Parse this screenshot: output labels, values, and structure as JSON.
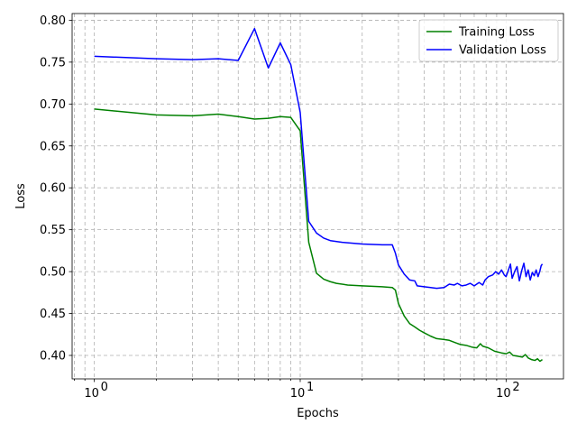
{
  "chart_data": {
    "type": "line",
    "xlabel": "Epochs",
    "ylabel": "Loss",
    "xscale": "log",
    "xlim": [
      0.78,
      190
    ],
    "ylim": [
      0.372,
      0.808
    ],
    "x_ticks": [
      1,
      10,
      100
    ],
    "x_tick_labels": [
      "10",
      "10",
      "10"
    ],
    "x_tick_exponents": [
      "0",
      "1",
      "2"
    ],
    "y_ticks": [
      0.4,
      0.45,
      0.5,
      0.55,
      0.6,
      0.65,
      0.7,
      0.75,
      0.8
    ],
    "y_tick_labels": [
      "0.40",
      "0.45",
      "0.50",
      "0.55",
      "0.60",
      "0.65",
      "0.70",
      "0.75",
      "0.80"
    ],
    "grid": true,
    "grid_style": "dashed",
    "legend_position": "top-right",
    "series": [
      {
        "name": "Training Loss",
        "color": "#008000",
        "points": [
          [
            1,
            0.694
          ],
          [
            2,
            0.687
          ],
          [
            3,
            0.686
          ],
          [
            4,
            0.688
          ],
          [
            5,
            0.685
          ],
          [
            6,
            0.682
          ],
          [
            7,
            0.683
          ],
          [
            8,
            0.685
          ],
          [
            9,
            0.684
          ],
          [
            10,
            0.668
          ],
          [
            11,
            0.535
          ],
          [
            12,
            0.498
          ],
          [
            13,
            0.491
          ],
          [
            14,
            0.488
          ],
          [
            15,
            0.486
          ],
          [
            17,
            0.484
          ],
          [
            20,
            0.483
          ],
          [
            25,
            0.482
          ],
          [
            28,
            0.481
          ],
          [
            29,
            0.478
          ],
          [
            30,
            0.462
          ],
          [
            32,
            0.447
          ],
          [
            34,
            0.438
          ],
          [
            36,
            0.434
          ],
          [
            38,
            0.43
          ],
          [
            40,
            0.427
          ],
          [
            43,
            0.423
          ],
          [
            46,
            0.42
          ],
          [
            50,
            0.419
          ],
          [
            53,
            0.418
          ],
          [
            57,
            0.415
          ],
          [
            60,
            0.413
          ],
          [
            64,
            0.412
          ],
          [
            68,
            0.41
          ],
          [
            72,
            0.409
          ],
          [
            75,
            0.414
          ],
          [
            77,
            0.411
          ],
          [
            82,
            0.409
          ],
          [
            88,
            0.405
          ],
          [
            95,
            0.403
          ],
          [
            100,
            0.402
          ],
          [
            104,
            0.404
          ],
          [
            108,
            0.4
          ],
          [
            114,
            0.399
          ],
          [
            120,
            0.398
          ],
          [
            124,
            0.401
          ],
          [
            128,
            0.397
          ],
          [
            133,
            0.395
          ],
          [
            138,
            0.394
          ],
          [
            142,
            0.396
          ],
          [
            146,
            0.393
          ],
          [
            150,
            0.395
          ]
        ]
      },
      {
        "name": "Validation Loss",
        "color": "#0000ff",
        "points": [
          [
            1,
            0.757
          ],
          [
            2,
            0.754
          ],
          [
            3,
            0.753
          ],
          [
            4,
            0.754
          ],
          [
            5,
            0.752
          ],
          [
            6,
            0.79
          ],
          [
            7,
            0.743
          ],
          [
            8,
            0.773
          ],
          [
            9,
            0.747
          ],
          [
            10,
            0.69
          ],
          [
            11,
            0.56
          ],
          [
            12,
            0.546
          ],
          [
            13,
            0.54
          ],
          [
            14,
            0.537
          ],
          [
            16,
            0.535
          ],
          [
            20,
            0.533
          ],
          [
            25,
            0.532
          ],
          [
            28,
            0.532
          ],
          [
            29,
            0.522
          ],
          [
            30,
            0.508
          ],
          [
            32,
            0.497
          ],
          [
            34,
            0.49
          ],
          [
            36,
            0.489
          ],
          [
            37,
            0.483
          ],
          [
            40,
            0.482
          ],
          [
            43,
            0.481
          ],
          [
            46,
            0.48
          ],
          [
            50,
            0.481
          ],
          [
            53,
            0.485
          ],
          [
            56,
            0.484
          ],
          [
            58,
            0.486
          ],
          [
            61,
            0.483
          ],
          [
            64,
            0.484
          ],
          [
            67,
            0.486
          ],
          [
            70,
            0.483
          ],
          [
            74,
            0.487
          ],
          [
            77,
            0.484
          ],
          [
            79,
            0.49
          ],
          [
            82,
            0.494
          ],
          [
            86,
            0.496
          ],
          [
            89,
            0.5
          ],
          [
            92,
            0.497
          ],
          [
            95,
            0.502
          ],
          [
            98,
            0.496
          ],
          [
            100,
            0.494
          ],
          [
            102,
            0.5
          ],
          [
            105,
            0.509
          ],
          [
            107,
            0.492
          ],
          [
            110,
            0.5
          ],
          [
            113,
            0.506
          ],
          [
            116,
            0.489
          ],
          [
            119,
            0.501
          ],
          [
            122,
            0.51
          ],
          [
            125,
            0.494
          ],
          [
            128,
            0.502
          ],
          [
            131,
            0.49
          ],
          [
            134,
            0.499
          ],
          [
            137,
            0.495
          ],
          [
            140,
            0.502
          ],
          [
            143,
            0.494
          ],
          [
            146,
            0.501
          ],
          [
            148,
            0.507
          ],
          [
            150,
            0.509
          ]
        ]
      }
    ]
  }
}
